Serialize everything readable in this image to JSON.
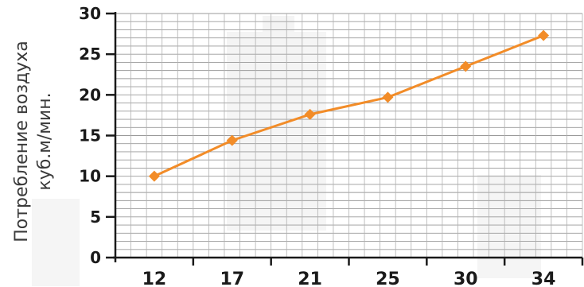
{
  "chart_data": {
    "type": "line",
    "ylabel_lines": [
      "Потребление воздуха",
      "куб.м/мин."
    ],
    "xlabel": "",
    "categories": [
      "12",
      "17",
      "21",
      "25",
      "30",
      "34"
    ],
    "series": [
      {
        "values": [
          10,
          14.4,
          17.6,
          19.7,
          23.5,
          27.3
        ]
      }
    ],
    "ylim": [
      0,
      30
    ],
    "yticks": [
      0,
      5,
      10,
      15,
      20,
      25,
      30
    ],
    "grid": true,
    "line_color": "#f28c28"
  }
}
